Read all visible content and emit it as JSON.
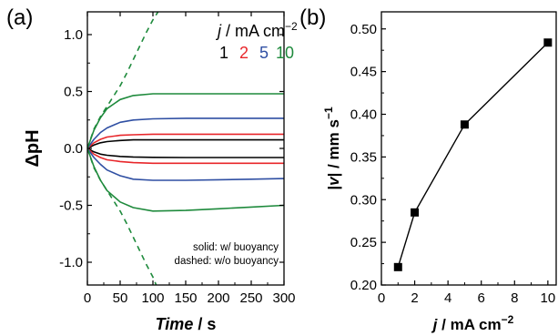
{
  "panels": {
    "a": "(a)",
    "b": "(b)"
  },
  "legend": {
    "title_j": "j",
    "title_rest": " / mA cm",
    "title_sup": "−2",
    "entries": [
      {
        "label": "1",
        "color": "#000000"
      },
      {
        "label": "2",
        "color": "#e8262a"
      },
      {
        "label": "5",
        "color": "#2f4fa3"
      },
      {
        "label": "10",
        "color": "#1e8a3c"
      }
    ],
    "note_solid": "solid: w/ buoyancy",
    "note_dashed": "dashed: w/o buoyancy"
  },
  "chart_data": [
    {
      "type": "line",
      "xlabel_italic": "Time",
      "xlabel_rest": " / s",
      "ylabel": "ΔpH",
      "xlim": [
        0,
        300
      ],
      "ylim": [
        -1.2,
        1.2
      ],
      "xticks": [
        0,
        50,
        100,
        150,
        200,
        250,
        300
      ],
      "yticks": [
        -1.0,
        -0.5,
        0.0,
        0.5,
        1.0
      ],
      "ytick_labels": [
        "-1.0",
        "-0.5",
        "0.0",
        "0.5",
        "1.0"
      ],
      "series": [
        {
          "name": "1",
          "color": "#000000",
          "style": "solid",
          "branch": "positive",
          "x": [
            0,
            10,
            20,
            30,
            50,
            70,
            100,
            150,
            200,
            250,
            300
          ],
          "y": [
            0,
            0.03,
            0.05,
            0.06,
            0.07,
            0.075,
            0.075,
            0.075,
            0.075,
            0.075,
            0.075
          ]
        },
        {
          "name": "1",
          "color": "#000000",
          "style": "solid",
          "branch": "negative",
          "x": [
            0,
            10,
            20,
            30,
            50,
            70,
            100,
            150,
            200,
            250,
            300
          ],
          "y": [
            0,
            -0.03,
            -0.05,
            -0.06,
            -0.07,
            -0.075,
            -0.078,
            -0.08,
            -0.08,
            -0.08,
            -0.08
          ]
        },
        {
          "name": "2",
          "color": "#e8262a",
          "style": "solid",
          "branch": "positive",
          "x": [
            0,
            10,
            20,
            30,
            50,
            70,
            100,
            150,
            200,
            250,
            300
          ],
          "y": [
            0,
            0.05,
            0.08,
            0.1,
            0.115,
            0.12,
            0.125,
            0.125,
            0.125,
            0.125,
            0.125
          ]
        },
        {
          "name": "2",
          "color": "#e8262a",
          "style": "solid",
          "branch": "negative",
          "x": [
            0,
            10,
            20,
            30,
            50,
            70,
            100,
            150,
            200,
            250,
            300
          ],
          "y": [
            0,
            -0.05,
            -0.08,
            -0.1,
            -0.115,
            -0.125,
            -0.13,
            -0.13,
            -0.13,
            -0.13,
            -0.13
          ]
        },
        {
          "name": "5",
          "color": "#2f4fa3",
          "style": "solid",
          "branch": "positive",
          "x": [
            0,
            10,
            20,
            30,
            50,
            70,
            100,
            150,
            200,
            250,
            300
          ],
          "y": [
            0,
            0.08,
            0.14,
            0.18,
            0.23,
            0.25,
            0.26,
            0.265,
            0.265,
            0.265,
            0.265
          ]
        },
        {
          "name": "5",
          "color": "#2f4fa3",
          "style": "solid",
          "branch": "negative",
          "x": [
            0,
            10,
            20,
            30,
            50,
            70,
            100,
            150,
            200,
            250,
            300
          ],
          "y": [
            0,
            -0.08,
            -0.14,
            -0.19,
            -0.24,
            -0.27,
            -0.28,
            -0.28,
            -0.275,
            -0.27,
            -0.265
          ]
        },
        {
          "name": "10",
          "color": "#1e8a3c",
          "style": "solid",
          "branch": "positive",
          "x": [
            0,
            10,
            20,
            30,
            50,
            70,
            100,
            150,
            200,
            250,
            300
          ],
          "y": [
            0,
            0.16,
            0.27,
            0.35,
            0.43,
            0.465,
            0.48,
            0.48,
            0.48,
            0.48,
            0.48
          ]
        },
        {
          "name": "10",
          "color": "#1e8a3c",
          "style": "solid",
          "branch": "negative",
          "x": [
            0,
            10,
            20,
            30,
            50,
            70,
            100,
            150,
            200,
            250,
            300
          ],
          "y": [
            0,
            -0.16,
            -0.28,
            -0.37,
            -0.47,
            -0.52,
            -0.55,
            -0.545,
            -0.53,
            -0.515,
            -0.5
          ]
        },
        {
          "name": "10",
          "color": "#1e8a3c",
          "style": "dashed",
          "branch": "positive",
          "x": [
            0,
            10,
            20,
            30,
            40,
            50,
            60,
            70,
            80,
            90,
            100,
            110
          ],
          "y": [
            0,
            0.17,
            0.28,
            0.37,
            0.46,
            0.55,
            0.66,
            0.78,
            0.9,
            1.02,
            1.13,
            1.22
          ]
        },
        {
          "name": "10",
          "color": "#1e8a3c",
          "style": "dashed",
          "branch": "negative",
          "x": [
            0,
            10,
            20,
            30,
            40,
            50,
            60,
            70,
            80,
            90,
            100,
            105
          ],
          "y": [
            0,
            -0.17,
            -0.28,
            -0.37,
            -0.46,
            -0.55,
            -0.66,
            -0.78,
            -0.9,
            -1.02,
            -1.13,
            -1.2
          ]
        }
      ]
    },
    {
      "type": "scatter",
      "xlabel_italic": "j",
      "xlabel_rest": " / mA cm",
      "xlabel_sup": "−2",
      "ylabel_italic": "v",
      "ylabel_rest": " / mm s",
      "ylabel_sup": "−1",
      "xlim": [
        0,
        10.5
      ],
      "ylim": [
        0.2,
        0.52
      ],
      "xticks": [
        0,
        2,
        4,
        6,
        8,
        10
      ],
      "yticks": [
        0.2,
        0.25,
        0.3,
        0.35,
        0.4,
        0.45,
        0.5
      ],
      "ytick_labels": [
        "0.20",
        "0.25",
        "0.30",
        "0.35",
        "0.40",
        "0.45",
        "0.50"
      ],
      "x": [
        1,
        2,
        5,
        10
      ],
      "y": [
        0.221,
        0.285,
        0.388,
        0.484
      ],
      "marker_color": "#000000"
    }
  ]
}
